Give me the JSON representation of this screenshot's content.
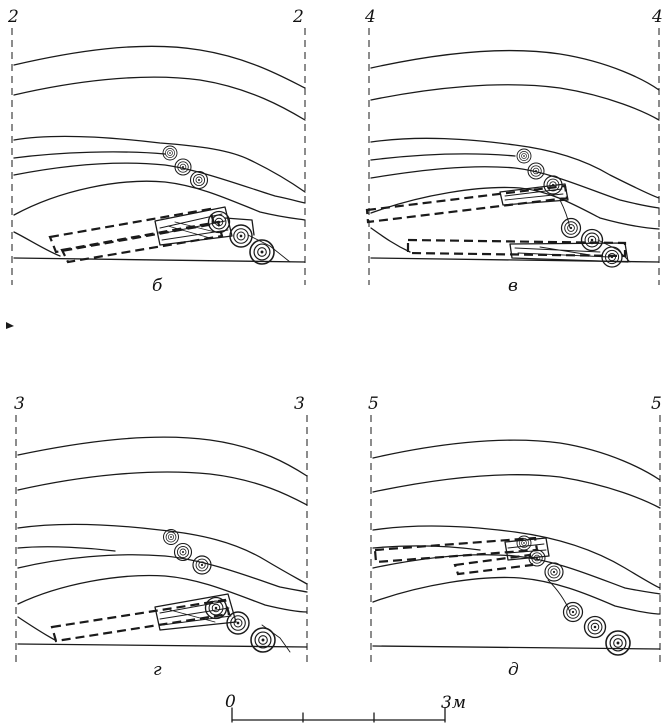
{
  "panels": [
    {
      "id": "b",
      "caption": "б",
      "section_left": "2",
      "section_right": "2"
    },
    {
      "id": "v",
      "caption": "в",
      "section_left": "4",
      "section_right": "4"
    },
    {
      "id": "g",
      "caption": "г",
      "section_left": "3",
      "section_right": "3"
    },
    {
      "id": "d",
      "caption": "д",
      "section_left": "5",
      "section_right": "5"
    }
  ],
  "scale_bar": {
    "start_label": "0",
    "end_label": "3м",
    "divisions": 3
  }
}
